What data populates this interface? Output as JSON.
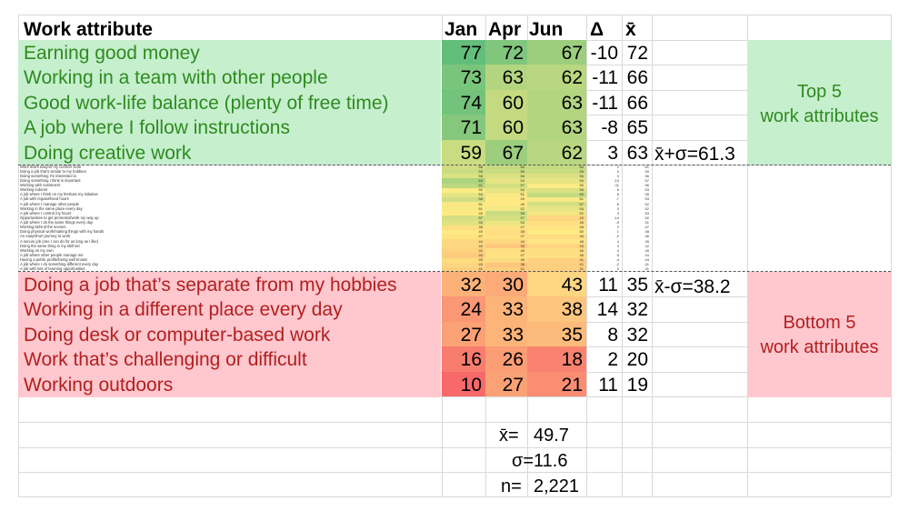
{
  "header": {
    "attribute": "Work attribute",
    "jan": "Jan",
    "apr": "Apr",
    "jun": "Jun",
    "delta": "Δ",
    "mean": "x̄"
  },
  "top_label": "Top 5\nwork attributes",
  "bottom_label": "Bottom 5\nwork attributes",
  "top_threshold": "x̄+σ=61.3",
  "bottom_threshold": "x̄-σ=38.2",
  "stats": {
    "mean_label": "x̄=",
    "mean_value": "49.7",
    "sd_label": "σ=",
    "sd_value": "11.6",
    "n_label": "n=",
    "n_value": "2,221"
  },
  "colors": {
    "top_band": "#c6efce",
    "bottom_band": "#ffc7ce",
    "top_text": "#2e8b1e",
    "bottom_text": "#b22020",
    "scale_high": "#63be7b",
    "scale_mid": "#ffeb84",
    "scale_low": "#f8696b"
  },
  "chart_data": {
    "type": "table",
    "columns": [
      "Work attribute",
      "Jan",
      "Apr",
      "Jun",
      "Δ",
      "x̄"
    ],
    "top_rows": [
      {
        "label": "Earning good money",
        "jan": 77,
        "apr": 72,
        "jun": 67,
        "delta": -10,
        "mean": 72
      },
      {
        "label": "Working in a team with other people",
        "jan": 73,
        "apr": 63,
        "jun": 62,
        "delta": -11,
        "mean": 66
      },
      {
        "label": "Good work-life balance (plenty of free time)",
        "jan": 74,
        "apr": 60,
        "jun": 63,
        "delta": -11,
        "mean": 66
      },
      {
        "label": "A job where I follow instructions",
        "jan": 71,
        "apr": 60,
        "jun": 63,
        "delta": -8,
        "mean": 65
      },
      {
        "label": "Doing creative work",
        "jan": 59,
        "apr": 67,
        "jun": 62,
        "delta": 3,
        "mean": 63
      }
    ],
    "middle_rows": [
      {
        "label": "Work that's easy/in my comfort zone",
        "jan": 58,
        "apr": 60,
        "jun": 60,
        "delta": 2,
        "mean": 61
      },
      {
        "label": "Doing a job that's similar to my hobbies",
        "jan": 59,
        "apr": 59,
        "jun": 59,
        "delta": 0,
        "mean": 59
      },
      {
        "label": "Doing something I'm interested in",
        "jan": 56,
        "apr": 56,
        "jun": 56,
        "delta": 0,
        "mean": 56
      },
      {
        "label": "Doing something I think is important",
        "jan": 64,
        "apr": 54,
        "jun": 54,
        "delta": -10,
        "mean": 57
      },
      {
        "label": "Working with customers",
        "jan": 61,
        "apr": 57,
        "jun": 50,
        "delta": -11,
        "mean": 56
      },
      {
        "label": "Working indoors",
        "jan": 50,
        "apr": 54,
        "jun": 56,
        "delta": 6,
        "mean": 53
      },
      {
        "label": "A job where I think on my feet/use my initiative",
        "jan": 54,
        "apr": 51,
        "jun": 60,
        "delta": 6,
        "mean": 55
      },
      {
        "label": "A job with regular/fixed hours",
        "jan": 58,
        "apr": 49,
        "jun": 51,
        "delta": -7,
        "mean": 53
      },
      {
        "label": "A job where I manage other people",
        "jan": 51,
        "apr": 49,
        "jun": 57,
        "delta": 6,
        "mean": 52
      },
      {
        "label": "Working in the same place every day",
        "jan": 51,
        "apr": 52,
        "jun": 54,
        "delta": 3,
        "mean": 52
      },
      {
        "label": "A job where I control my hours",
        "jan": 49,
        "apr": 59,
        "jun": 52,
        "delta": 3,
        "mean": 53
      },
      {
        "label": "Opportunities to get promoted/work my way up",
        "jan": 57,
        "apr": 57,
        "jun": 43,
        "delta": -14,
        "mean": 52
      },
      {
        "label": "A job where I do the same things every day",
        "jan": 55,
        "apr": 53,
        "jun": 46,
        "delta": -9,
        "mean": 51
      },
      {
        "label": "Working behind the scenes",
        "jan": 46,
        "apr": 47,
        "jun": 48,
        "delta": 2,
        "mean": 47
      },
      {
        "label": "Doing physical work/making things with my hands",
        "jan": 49,
        "apr": 45,
        "jun": 50,
        "delta": 1,
        "mean": 48
      },
      {
        "label": "An easy/short journey to work",
        "jan": 47,
        "apr": 47,
        "jun": 45,
        "delta": -2,
        "mean": 46
      },
      {
        "label": "A secure job (one I can do for as long as I like)",
        "jan": 44,
        "apr": 44,
        "jun": 48,
        "delta": 4,
        "mean": 45
      },
      {
        "label": "Doing the same thing in my skill set",
        "jan": 43,
        "apr": 39,
        "jun": 43,
        "delta": 0,
        "mean": 42
      },
      {
        "label": "Working on my own",
        "jan": 42,
        "apr": 46,
        "jun": 46,
        "delta": 4,
        "mean": 45
      },
      {
        "label": "A job where other people manage me",
        "jan": 40,
        "apr": 47,
        "jun": 46,
        "delta": 6,
        "mean": 44
      },
      {
        "label": "Having a public profile/being well known",
        "jan": 45,
        "apr": 45,
        "jun": 41,
        "delta": -4,
        "mean": 44
      },
      {
        "label": "A job where I do something different every day",
        "jan": 43,
        "apr": 38,
        "jun": 41,
        "delta": -2,
        "mean": 41
      },
      {
        "label": "A job with lots of learning opportunities",
        "jan": 41,
        "apr": 41,
        "jun": 41,
        "delta": 0,
        "mean": 41
      }
    ],
    "bottom_rows": [
      {
        "label": "Doing a job that’s separate from my hobbies",
        "jan": 32,
        "apr": 30,
        "jun": 43,
        "delta": 11,
        "mean": 35
      },
      {
        "label": "Working in a different place every day",
        "jan": 24,
        "apr": 33,
        "jun": 38,
        "delta": 14,
        "mean": 32
      },
      {
        "label": "Doing desk or computer-based work",
        "jan": 27,
        "apr": 33,
        "jun": 35,
        "delta": 8,
        "mean": 32
      },
      {
        "label": "Work that’s challenging or difficult",
        "jan": 16,
        "apr": 26,
        "jun": 18,
        "delta": 2,
        "mean": 20
      },
      {
        "label": "Working outdoors",
        "jan": 10,
        "apr": 27,
        "jun": 21,
        "delta": 11,
        "mean": 19
      }
    ]
  }
}
